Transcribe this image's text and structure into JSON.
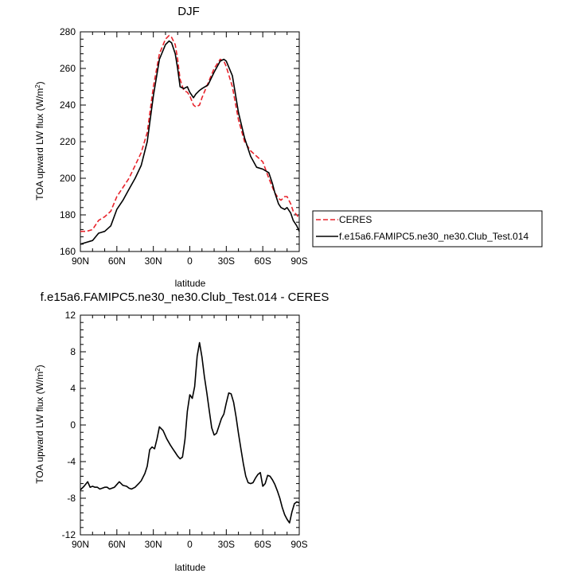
{
  "colors": {
    "ceres": "#e8232b",
    "model": "#000000"
  },
  "chart_data": [
    {
      "type": "line",
      "title": "DJF",
      "xlabel": "latitude",
      "ylabel": "TOA upward LW flux (W/m²)",
      "xlim": [
        90,
        -90
      ],
      "ylim": [
        160,
        280
      ],
      "xticks": [
        90,
        60,
        30,
        0,
        -30,
        -60,
        -90
      ],
      "xtick_labels": [
        "90N",
        "60N",
        "30N",
        "0",
        "30S",
        "60S",
        "90S"
      ],
      "yticks": [
        160,
        180,
        200,
        220,
        240,
        260,
        280
      ],
      "ytick_labels": [
        "160",
        "180",
        "200",
        "220",
        "240",
        "260",
        "280"
      ],
      "legend": {
        "position": "right"
      },
      "series": [
        {
          "name": "CERES",
          "style": "dashed",
          "color": "#e8232b",
          "x": [
            90,
            85,
            80,
            75,
            70,
            65,
            60,
            55,
            50,
            45,
            40,
            35,
            30,
            25,
            20,
            17,
            15,
            12,
            10,
            8,
            5,
            2,
            0,
            -3,
            -5,
            -8,
            -10,
            -15,
            -20,
            -25,
            -28,
            -30,
            -35,
            -40,
            -45,
            -50,
            -55,
            -60,
            -65,
            -68,
            -70,
            -73,
            -75,
            -78,
            -80,
            -83,
            -85,
            -88,
            -90
          ],
          "y": [
            171,
            171,
            172,
            177,
            179,
            182,
            190,
            195,
            200,
            207,
            214,
            225,
            250,
            268,
            276,
            278,
            277,
            273,
            265,
            254,
            248,
            247,
            245,
            240,
            239,
            240,
            244,
            252,
            260,
            265,
            264,
            261,
            250,
            232,
            220,
            215,
            212,
            209,
            200,
            195,
            192,
            189,
            188,
            190,
            190,
            186,
            182,
            180,
            178
          ]
        },
        {
          "name": "f.e15a6.FAMIPC5.ne30_ne30.Club_Test.014",
          "style": "solid",
          "color": "#000000",
          "x": [
            90,
            85,
            80,
            75,
            70,
            65,
            60,
            55,
            50,
            45,
            40,
            35,
            30,
            25,
            20,
            17,
            15,
            12,
            10,
            8,
            5,
            2,
            0,
            -3,
            -5,
            -8,
            -10,
            -15,
            -20,
            -25,
            -28,
            -30,
            -35,
            -40,
            -45,
            -50,
            -55,
            -60,
            -65,
            -68,
            -70,
            -73,
            -75,
            -78,
            -80,
            -83,
            -85,
            -88,
            -90
          ],
          "y": [
            164,
            165,
            166,
            170,
            171,
            174,
            183,
            188,
            194,
            200,
            207,
            220,
            245,
            265,
            273,
            275,
            274,
            268,
            260,
            250,
            249,
            250,
            247,
            244,
            246,
            248,
            249,
            251,
            258,
            264,
            265,
            264,
            256,
            236,
            222,
            212,
            206,
            205,
            203,
            197,
            192,
            186,
            184,
            183,
            184,
            181,
            177,
            174,
            171
          ]
        }
      ]
    },
    {
      "type": "line",
      "title": "f.e15a6.FAMIPC5.ne30_ne30.Club_Test.014 - CERES",
      "xlabel": "latitude",
      "ylabel": "TOA upward LW flux (W/m²)",
      "xlim": [
        90,
        -90
      ],
      "ylim": [
        -12,
        12
      ],
      "xticks": [
        90,
        60,
        30,
        0,
        -30,
        -60,
        -90
      ],
      "xtick_labels": [
        "90N",
        "60N",
        "30N",
        "0",
        "30S",
        "60S",
        "90S"
      ],
      "yticks": [
        -12,
        -8,
        -4,
        0,
        4,
        8,
        12
      ],
      "ytick_labels": [
        "-12",
        "-8",
        "-4",
        "0",
        "4",
        "8",
        "12"
      ],
      "series": [
        {
          "style": "solid",
          "color": "#000000",
          "x": [
            90,
            87,
            84,
            82,
            80,
            78,
            76,
            74,
            72,
            70,
            68,
            66,
            64,
            62,
            60,
            58,
            55,
            52,
            50,
            48,
            45,
            42,
            40,
            37,
            35,
            33,
            31,
            29,
            27,
            25,
            22,
            19,
            16,
            14,
            12,
            10,
            8,
            6,
            4,
            2,
            0,
            -2,
            -4,
            -6,
            -8,
            -10,
            -12,
            -14,
            -16,
            -18,
            -20,
            -22,
            -24,
            -26,
            -28,
            -30,
            -32,
            -34,
            -36,
            -38,
            -40,
            -42,
            -44,
            -46,
            -48,
            -50,
            -52,
            -54,
            -56,
            -58,
            -60,
            -62,
            -64,
            -66,
            -68,
            -70,
            -72,
            -74,
            -76,
            -78,
            -80,
            -82,
            -84,
            -86,
            -88,
            -90
          ],
          "y": [
            -7.1,
            -6.7,
            -6.2,
            -6.8,
            -6.7,
            -6.8,
            -6.8,
            -7.0,
            -6.9,
            -6.8,
            -6.8,
            -7.0,
            -6.9,
            -6.8,
            -6.5,
            -6.2,
            -6.6,
            -6.7,
            -6.9,
            -7.0,
            -6.8,
            -6.4,
            -6.1,
            -5.3,
            -4.5,
            -2.7,
            -2.4,
            -2.6,
            -1.5,
            -0.2,
            -0.6,
            -1.5,
            -2.2,
            -2.6,
            -3.0,
            -3.4,
            -3.7,
            -3.5,
            -1.6,
            1.5,
            3.3,
            2.9,
            4.2,
            7.5,
            9.0,
            7.4,
            5.3,
            3.5,
            1.6,
            -0.3,
            -1.1,
            -0.9,
            -0.1,
            0.7,
            1.2,
            2.4,
            3.5,
            3.4,
            2.5,
            0.9,
            -0.9,
            -2.6,
            -4.2,
            -5.6,
            -6.3,
            -6.4,
            -6.3,
            -5.8,
            -5.4,
            -5.2,
            -6.7,
            -6.4,
            -5.5,
            -5.6,
            -6.0,
            -6.5,
            -7.2,
            -8.0,
            -9.0,
            -9.8,
            -10.3,
            -10.7,
            -9.5,
            -8.6,
            -8.4,
            -8.5
          ]
        }
      ]
    }
  ]
}
